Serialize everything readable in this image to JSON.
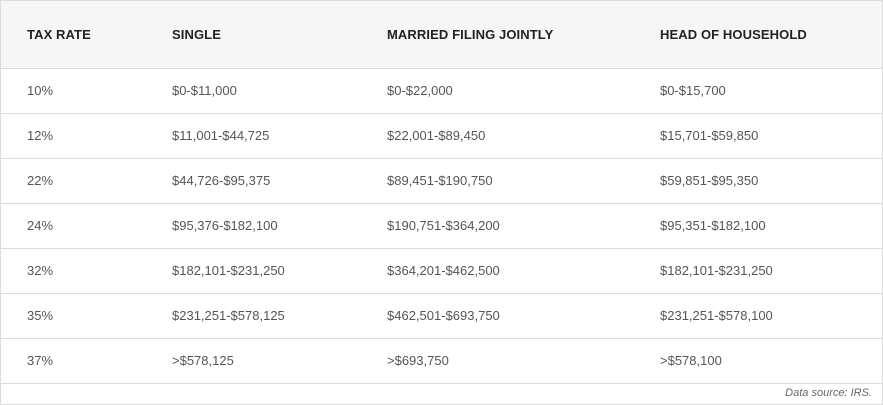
{
  "table": {
    "headers": [
      "TAX RATE",
      "SINGLE",
      "MARRIED FILING JOINTLY",
      "HEAD OF HOUSEHOLD"
    ],
    "rows": [
      [
        "10%",
        "$0-$11,000",
        "$0-$22,000",
        "$0-$15,700"
      ],
      [
        "12%",
        "$11,001-$44,725",
        "$22,001-$89,450",
        "$15,701-$59,850"
      ],
      [
        "22%",
        "$44,726-$95,375",
        "$89,451-$190,750",
        "$59,851-$95,350"
      ],
      [
        "24%",
        "$95,376-$182,100",
        "$190,751-$364,200",
        "$95,351-$182,100"
      ],
      [
        "32%",
        "$182,101-$231,250",
        "$364,201-$462,500",
        "$182,101-$231,250"
      ],
      [
        "35%",
        "$231,251-$578,125",
        "$462,501-$693,750",
        "$231,251-$578,100"
      ],
      [
        "37%",
        ">$578,125",
        ">$693,750",
        ">$578,100"
      ]
    ]
  },
  "footer": {
    "source": "Data source: IRS."
  }
}
